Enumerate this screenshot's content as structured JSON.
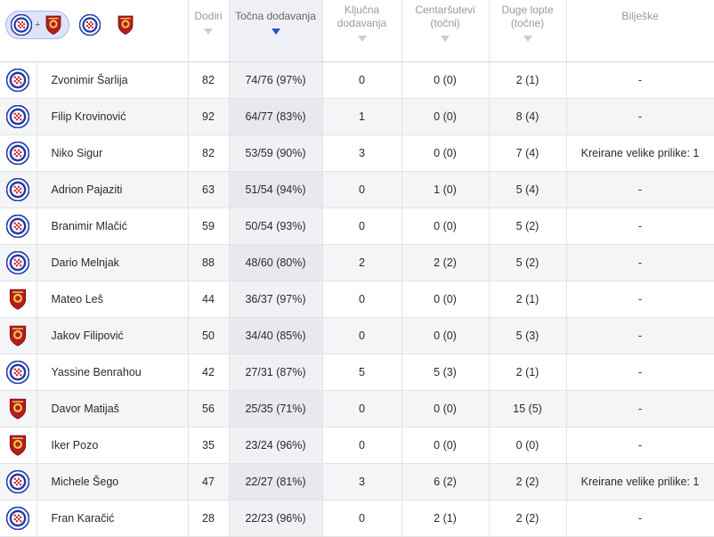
{
  "header": {
    "filter_plus": "+",
    "columns": {
      "touches": "Dodiri",
      "accurate_passes": "Točna dodavanja",
      "key_passes": "Ključna dodavanja",
      "crosses": "Centaršutevi (točni)",
      "long_balls": "Duge lopte (točne)",
      "notes": "Bilješke"
    },
    "sort_column": "accurate_passes"
  },
  "teams": {
    "home": {
      "icon": "hajduk-crest-icon",
      "color": "#1f3aa8"
    },
    "away": {
      "icon": "gorica-crest-icon",
      "color": "#b51d1d"
    }
  },
  "players": [
    {
      "team": "home",
      "name": "Zvonimir Šarlija",
      "touches": "82",
      "accurate_passes": "74/76 (97%)",
      "key_passes": "0",
      "crosses": "0 (0)",
      "long_balls": "2 (1)",
      "notes": "-"
    },
    {
      "team": "home",
      "name": "Filip Krovinović",
      "touches": "92",
      "accurate_passes": "64/77 (83%)",
      "key_passes": "1",
      "crosses": "0 (0)",
      "long_balls": "8 (4)",
      "notes": "-"
    },
    {
      "team": "home",
      "name": "Niko Sigur",
      "touches": "82",
      "accurate_passes": "53/59 (90%)",
      "key_passes": "3",
      "crosses": "0 (0)",
      "long_balls": "7 (4)",
      "notes": "Kreirane velike prilike: 1"
    },
    {
      "team": "home",
      "name": "Adrion Pajaziti",
      "touches": "63",
      "accurate_passes": "51/54 (94%)",
      "key_passes": "0",
      "crosses": "1 (0)",
      "long_balls": "5 (4)",
      "notes": "-"
    },
    {
      "team": "home",
      "name": "Branimir Mlačić",
      "touches": "59",
      "accurate_passes": "50/54 (93%)",
      "key_passes": "0",
      "crosses": "0 (0)",
      "long_balls": "5 (2)",
      "notes": "-"
    },
    {
      "team": "home",
      "name": "Dario Melnjak",
      "touches": "88",
      "accurate_passes": "48/60 (80%)",
      "key_passes": "2",
      "crosses": "2 (2)",
      "long_balls": "5 (2)",
      "notes": "-"
    },
    {
      "team": "away",
      "name": "Mateo Leš",
      "touches": "44",
      "accurate_passes": "36/37 (97%)",
      "key_passes": "0",
      "crosses": "0 (0)",
      "long_balls": "2 (1)",
      "notes": "-"
    },
    {
      "team": "away",
      "name": "Jakov Filipović",
      "touches": "50",
      "accurate_passes": "34/40 (85%)",
      "key_passes": "0",
      "crosses": "0 (0)",
      "long_balls": "5 (3)",
      "notes": "-"
    },
    {
      "team": "home",
      "name": "Yassine Benrahou",
      "touches": "42",
      "accurate_passes": "27/31 (87%)",
      "key_passes": "5",
      "crosses": "5 (3)",
      "long_balls": "2 (1)",
      "notes": "-"
    },
    {
      "team": "away",
      "name": "Davor Matijaš",
      "touches": "56",
      "accurate_passes": "25/35 (71%)",
      "key_passes": "0",
      "crosses": "0 (0)",
      "long_balls": "15 (5)",
      "notes": "-"
    },
    {
      "team": "away",
      "name": "Iker Pozo",
      "touches": "35",
      "accurate_passes": "23/24 (96%)",
      "key_passes": "0",
      "crosses": "0 (0)",
      "long_balls": "0 (0)",
      "notes": "-"
    },
    {
      "team": "home",
      "name": "Michele Šego",
      "touches": "47",
      "accurate_passes": "22/27 (81%)",
      "key_passes": "3",
      "crosses": "6 (2)",
      "long_balls": "2 (2)",
      "notes": "Kreirane velike prilike: 1"
    },
    {
      "team": "home",
      "name": "Fran Karačić",
      "touches": "28",
      "accurate_passes": "22/23 (96%)",
      "key_passes": "0",
      "crosses": "2 (1)",
      "long_balls": "2 (2)",
      "notes": "-"
    }
  ]
}
